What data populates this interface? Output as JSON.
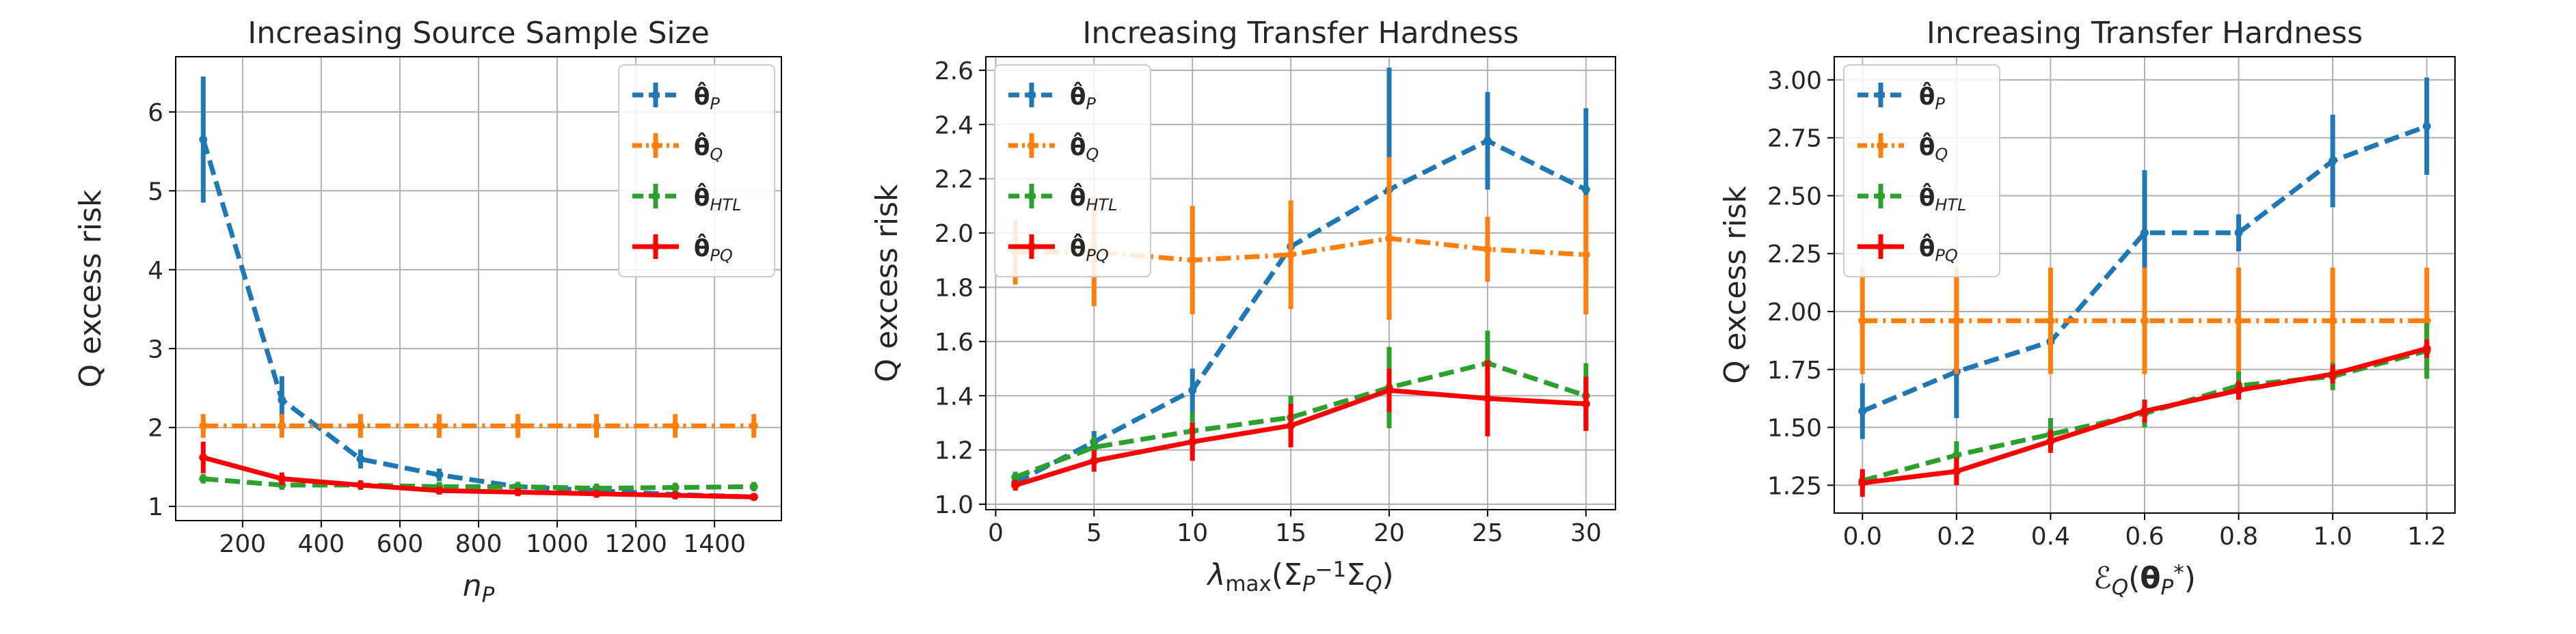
{
  "chart_data": [
    {
      "type": "line",
      "title": "Increasing Source Sample Size",
      "xlabel_parts": [
        {
          "t": "n",
          "s": "it"
        },
        {
          "t": "P",
          "s": "sub-it"
        }
      ],
      "ylabel": "Q excess risk",
      "xlim": [
        30,
        1570
      ],
      "ylim": [
        0.82,
        6.7
      ],
      "xticks": [
        200,
        400,
        600,
        800,
        1000,
        1200,
        1400
      ],
      "xtick_labels": [
        "200",
        "400",
        "600",
        "800",
        "1000",
        "1200",
        "1400"
      ],
      "yticks": [
        1,
        2,
        3,
        4,
        5,
        6
      ],
      "ytick_labels": [
        "1",
        "2",
        "3",
        "4",
        "5",
        "6"
      ],
      "grid": true,
      "legend_position": "top-right",
      "x": [
        100,
        300,
        500,
        700,
        900,
        1100,
        1300,
        1500
      ],
      "series": [
        {
          "name": "θ̂P",
          "base": "θ̂",
          "sub": "P",
          "color": "#1f77b4",
          "linestyle": "dashed",
          "values": [
            5.65,
            2.35,
            1.6,
            1.4,
            1.25,
            1.2,
            1.15,
            1.12
          ],
          "errors": [
            0.8,
            0.3,
            0.12,
            0.08,
            0.06,
            0.05,
            0.05,
            0.04
          ]
        },
        {
          "name": "θ̂Q",
          "base": "θ̂",
          "sub": "Q",
          "color": "#ff7f0e",
          "linestyle": "dashdot",
          "values": [
            2.02,
            2.02,
            2.02,
            2.02,
            2.02,
            2.02,
            2.02,
            2.02
          ],
          "errors": [
            0.15,
            0.15,
            0.15,
            0.15,
            0.15,
            0.15,
            0.15,
            0.15
          ]
        },
        {
          "name": "θ̂HTL",
          "base": "θ̂",
          "sub": "HTL",
          "color": "#2ca02c",
          "linestyle": "dashed",
          "values": [
            1.35,
            1.27,
            1.27,
            1.25,
            1.25,
            1.23,
            1.24,
            1.25
          ],
          "errors": [
            0.06,
            0.06,
            0.06,
            0.06,
            0.06,
            0.06,
            0.06,
            0.06
          ]
        },
        {
          "name": "θ̂PQ",
          "base": "θ̂",
          "sub": "PQ",
          "color": "#ff0000",
          "linestyle": "solid",
          "values": [
            1.62,
            1.35,
            1.27,
            1.2,
            1.18,
            1.16,
            1.14,
            1.12
          ],
          "errors": [
            0.2,
            0.08,
            0.06,
            0.05,
            0.05,
            0.05,
            0.05,
            0.04
          ]
        }
      ]
    },
    {
      "type": "line",
      "title": "Increasing Transfer Hardness",
      "xlabel_parts": [
        {
          "t": "λ",
          "s": "it"
        },
        {
          "t": "max",
          "s": "sub"
        },
        {
          "t": "(Σ",
          "s": ""
        },
        {
          "t": "P",
          "s": "sub-it"
        },
        {
          "t": "−1",
          "s": "sup"
        },
        {
          "t": "Σ",
          "s": ""
        },
        {
          "t": "Q",
          "s": "sub-it"
        },
        {
          "t": ")",
          "s": ""
        }
      ],
      "ylabel": "Q excess risk",
      "xlim": [
        -0.5,
        31.5
      ],
      "ylim": [
        0.98,
        2.65
      ],
      "xticks": [
        0,
        5,
        10,
        15,
        20,
        25,
        30
      ],
      "xtick_labels": [
        "0",
        "5",
        "10",
        "15",
        "20",
        "25",
        "30"
      ],
      "yticks": [
        1.0,
        1.2,
        1.4,
        1.6,
        1.8,
        2.0,
        2.2,
        2.4,
        2.6
      ],
      "ytick_labels": [
        "1.0",
        "1.2",
        "1.4",
        "1.6",
        "1.8",
        "2.0",
        "2.2",
        "2.4",
        "2.6"
      ],
      "grid": true,
      "legend_position": "top-left",
      "x": [
        1,
        5,
        10,
        15,
        20,
        25,
        30
      ],
      "series": [
        {
          "name": "θ̂P",
          "base": "θ̂",
          "sub": "P",
          "color": "#1f77b4",
          "linestyle": "dashed",
          "values": [
            1.08,
            1.23,
            1.42,
            1.95,
            2.16,
            2.34,
            2.16
          ],
          "errors": [
            0.02,
            0.04,
            0.08,
            0.12,
            0.45,
            0.18,
            0.3
          ]
        },
        {
          "name": "θ̂Q",
          "base": "θ̂",
          "sub": "Q",
          "color": "#ff7f0e",
          "linestyle": "dashdot",
          "values": [
            1.93,
            1.93,
            1.9,
            1.92,
            1.98,
            1.94,
            1.92
          ],
          "errors": [
            0.12,
            0.2,
            0.2,
            0.2,
            0.3,
            0.12,
            0.22
          ]
        },
        {
          "name": "θ̂HTL",
          "base": "θ̂",
          "sub": "HTL",
          "color": "#2ca02c",
          "linestyle": "dashed",
          "values": [
            1.1,
            1.21,
            1.27,
            1.32,
            1.43,
            1.52,
            1.4
          ],
          "errors": [
            0.02,
            0.04,
            0.07,
            0.08,
            0.15,
            0.12,
            0.12
          ]
        },
        {
          "name": "θ̂PQ",
          "base": "θ̂",
          "sub": "PQ",
          "color": "#ff0000",
          "linestyle": "solid",
          "values": [
            1.07,
            1.16,
            1.23,
            1.29,
            1.42,
            1.39,
            1.37
          ],
          "errors": [
            0.02,
            0.04,
            0.07,
            0.08,
            0.08,
            0.14,
            0.1
          ]
        }
      ]
    },
    {
      "type": "line",
      "title": "Increasing Transfer Hardness",
      "xlabel_parts": [
        {
          "t": "ℰ",
          "s": ""
        },
        {
          "t": "Q",
          "s": "sub-it"
        },
        {
          "t": "(",
          "s": ""
        },
        {
          "t": "θ",
          "s": "bold"
        },
        {
          "t": "P",
          "s": "sub-it"
        },
        {
          "t": "*",
          "s": "sup"
        },
        {
          "t": ")",
          "s": ""
        }
      ],
      "ylabel": "Q excess risk",
      "xlim": [
        -0.06,
        1.26
      ],
      "ylim": [
        1.13,
        3.1
      ],
      "xticks": [
        0.0,
        0.2,
        0.4,
        0.6,
        0.8,
        1.0,
        1.2
      ],
      "xtick_labels": [
        "0.0",
        "0.2",
        "0.4",
        "0.6",
        "0.8",
        "1.0",
        "1.2"
      ],
      "yticks": [
        1.25,
        1.5,
        1.75,
        2.0,
        2.25,
        2.5,
        2.75,
        3.0
      ],
      "ytick_labels": [
        "1.25",
        "1.50",
        "1.75",
        "2.00",
        "2.25",
        "2.50",
        "2.75",
        "3.00"
      ],
      "grid": true,
      "legend_position": "top-left",
      "x": [
        0.0,
        0.2,
        0.4,
        0.6,
        0.8,
        1.0,
        1.2
      ],
      "series": [
        {
          "name": "θ̂P",
          "base": "θ̂",
          "sub": "P",
          "color": "#1f77b4",
          "linestyle": "dashed",
          "values": [
            1.57,
            1.74,
            1.87,
            2.34,
            2.34,
            2.65,
            2.8
          ],
          "errors": [
            0.12,
            0.2,
            0.05,
            0.27,
            0.08,
            0.2,
            0.21
          ]
        },
        {
          "name": "θ̂Q",
          "base": "θ̂",
          "sub": "Q",
          "color": "#ff7f0e",
          "linestyle": "dashdot",
          "values": [
            1.96,
            1.96,
            1.96,
            1.96,
            1.96,
            1.96,
            1.96
          ],
          "errors": [
            0.23,
            0.23,
            0.23,
            0.23,
            0.23,
            0.23,
            0.23
          ]
        },
        {
          "name": "θ̂HTL",
          "base": "θ̂",
          "sub": "HTL",
          "color": "#2ca02c",
          "linestyle": "dashed",
          "values": [
            1.27,
            1.38,
            1.47,
            1.56,
            1.68,
            1.72,
            1.83
          ],
          "errors": [
            0.04,
            0.06,
            0.07,
            0.06,
            0.06,
            0.06,
            0.12
          ]
        },
        {
          "name": "θ̂PQ",
          "base": "θ̂",
          "sub": "PQ",
          "color": "#ff0000",
          "linestyle": "solid",
          "values": [
            1.26,
            1.31,
            1.44,
            1.57,
            1.66,
            1.73,
            1.84
          ],
          "errors": [
            0.06,
            0.06,
            0.05,
            0.05,
            0.04,
            0.04,
            0.04
          ]
        }
      ]
    }
  ]
}
